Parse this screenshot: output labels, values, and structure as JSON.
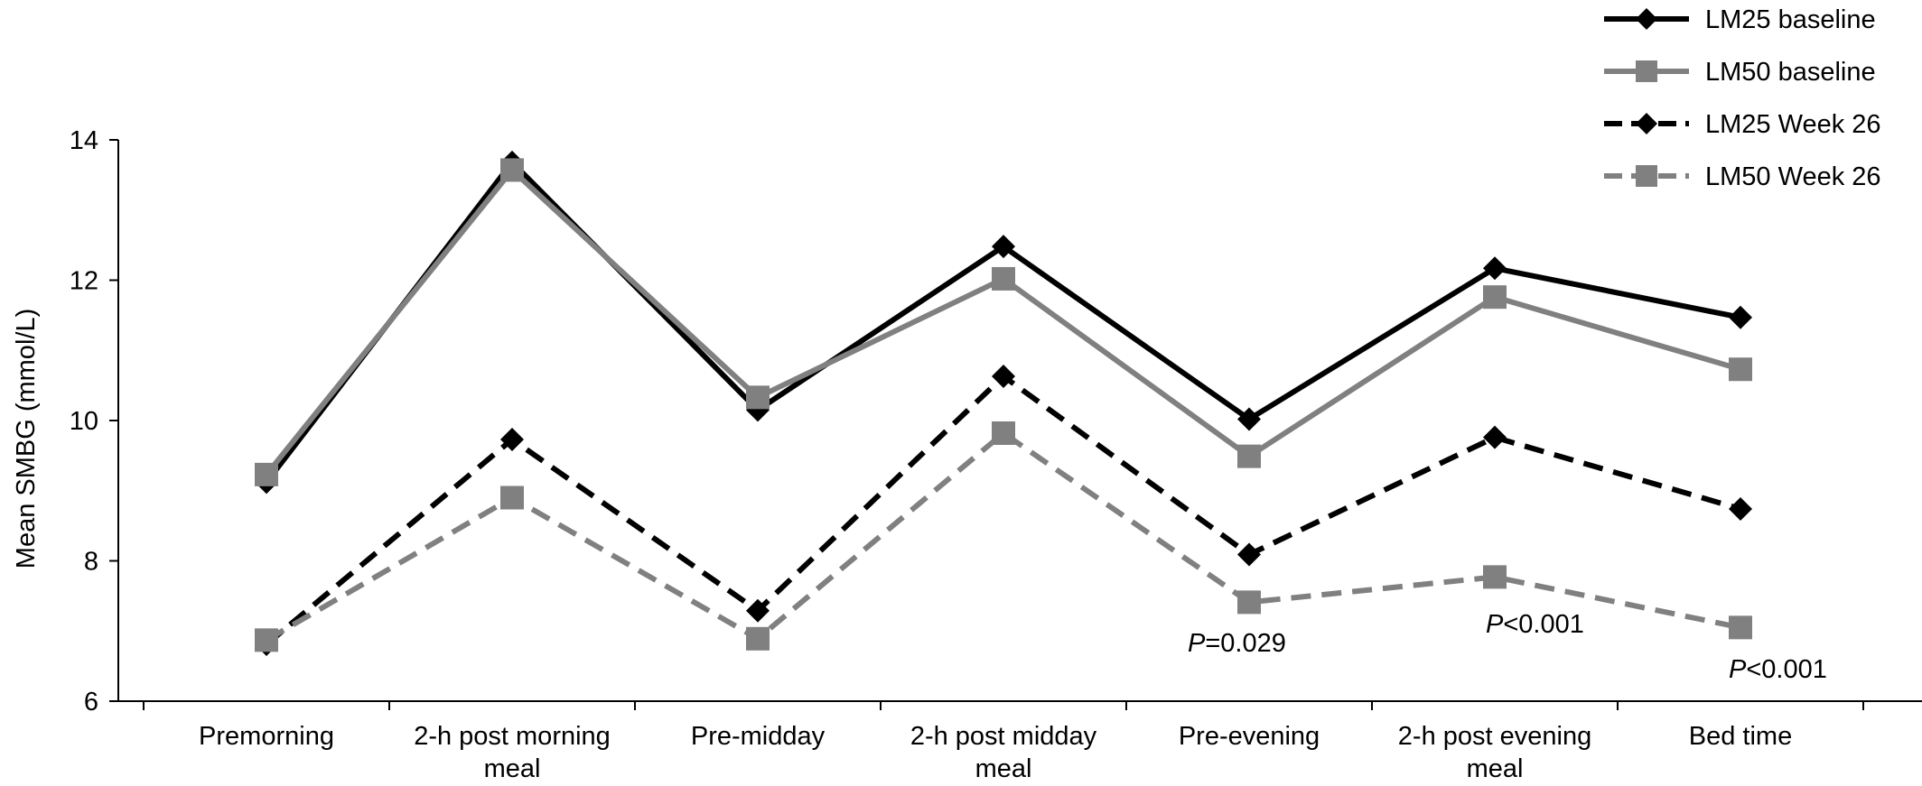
{
  "chart_data": {
    "type": "line",
    "title": "",
    "xlabel": "",
    "ylabel": "Mean SMBG (mmol/L)",
    "ylim": [
      6,
      14
    ],
    "yticks": [
      6,
      8,
      10,
      12,
      14
    ],
    "grid": false,
    "legend_position": "top-right",
    "categories": [
      [
        "Premorning"
      ],
      [
        "2-h post morning",
        "meal"
      ],
      [
        "Pre-midday"
      ],
      [
        "2-h post midday",
        "meal"
      ],
      [
        "Pre-evening"
      ],
      [
        "2-h post evening",
        "meal"
      ],
      [
        "Bed time"
      ]
    ],
    "series": [
      {
        "name": "LM25 baseline",
        "values": [
          9.12,
          13.68,
          10.15,
          12.48,
          10.02,
          12.17,
          11.47
        ],
        "color": "#000000",
        "dash": "solid",
        "marker": "diamond"
      },
      {
        "name": "LM50 baseline",
        "values": [
          9.23,
          13.57,
          10.33,
          12.02,
          9.49,
          11.76,
          10.73
        ],
        "color": "#808080",
        "dash": "solid",
        "marker": "square"
      },
      {
        "name": "LM25 Week 26",
        "values": [
          6.81,
          9.73,
          7.29,
          10.63,
          8.09,
          9.76,
          8.74
        ],
        "color": "#000000",
        "dash": "dashed",
        "marker": "diamond"
      },
      {
        "name": "LM50 Week 26",
        "values": [
          6.87,
          8.9,
          6.89,
          9.82,
          7.41,
          7.77,
          7.05
        ],
        "color": "#808080",
        "dash": "dashed",
        "marker": "square"
      }
    ],
    "annotations": [
      {
        "category_index": 4,
        "prefix": "P",
        "text": "=0.029"
      },
      {
        "category_index": 5,
        "prefix": "P",
        "text": "<0.001"
      },
      {
        "category_index": 6,
        "prefix": "P",
        "text": "<0.001"
      }
    ]
  }
}
